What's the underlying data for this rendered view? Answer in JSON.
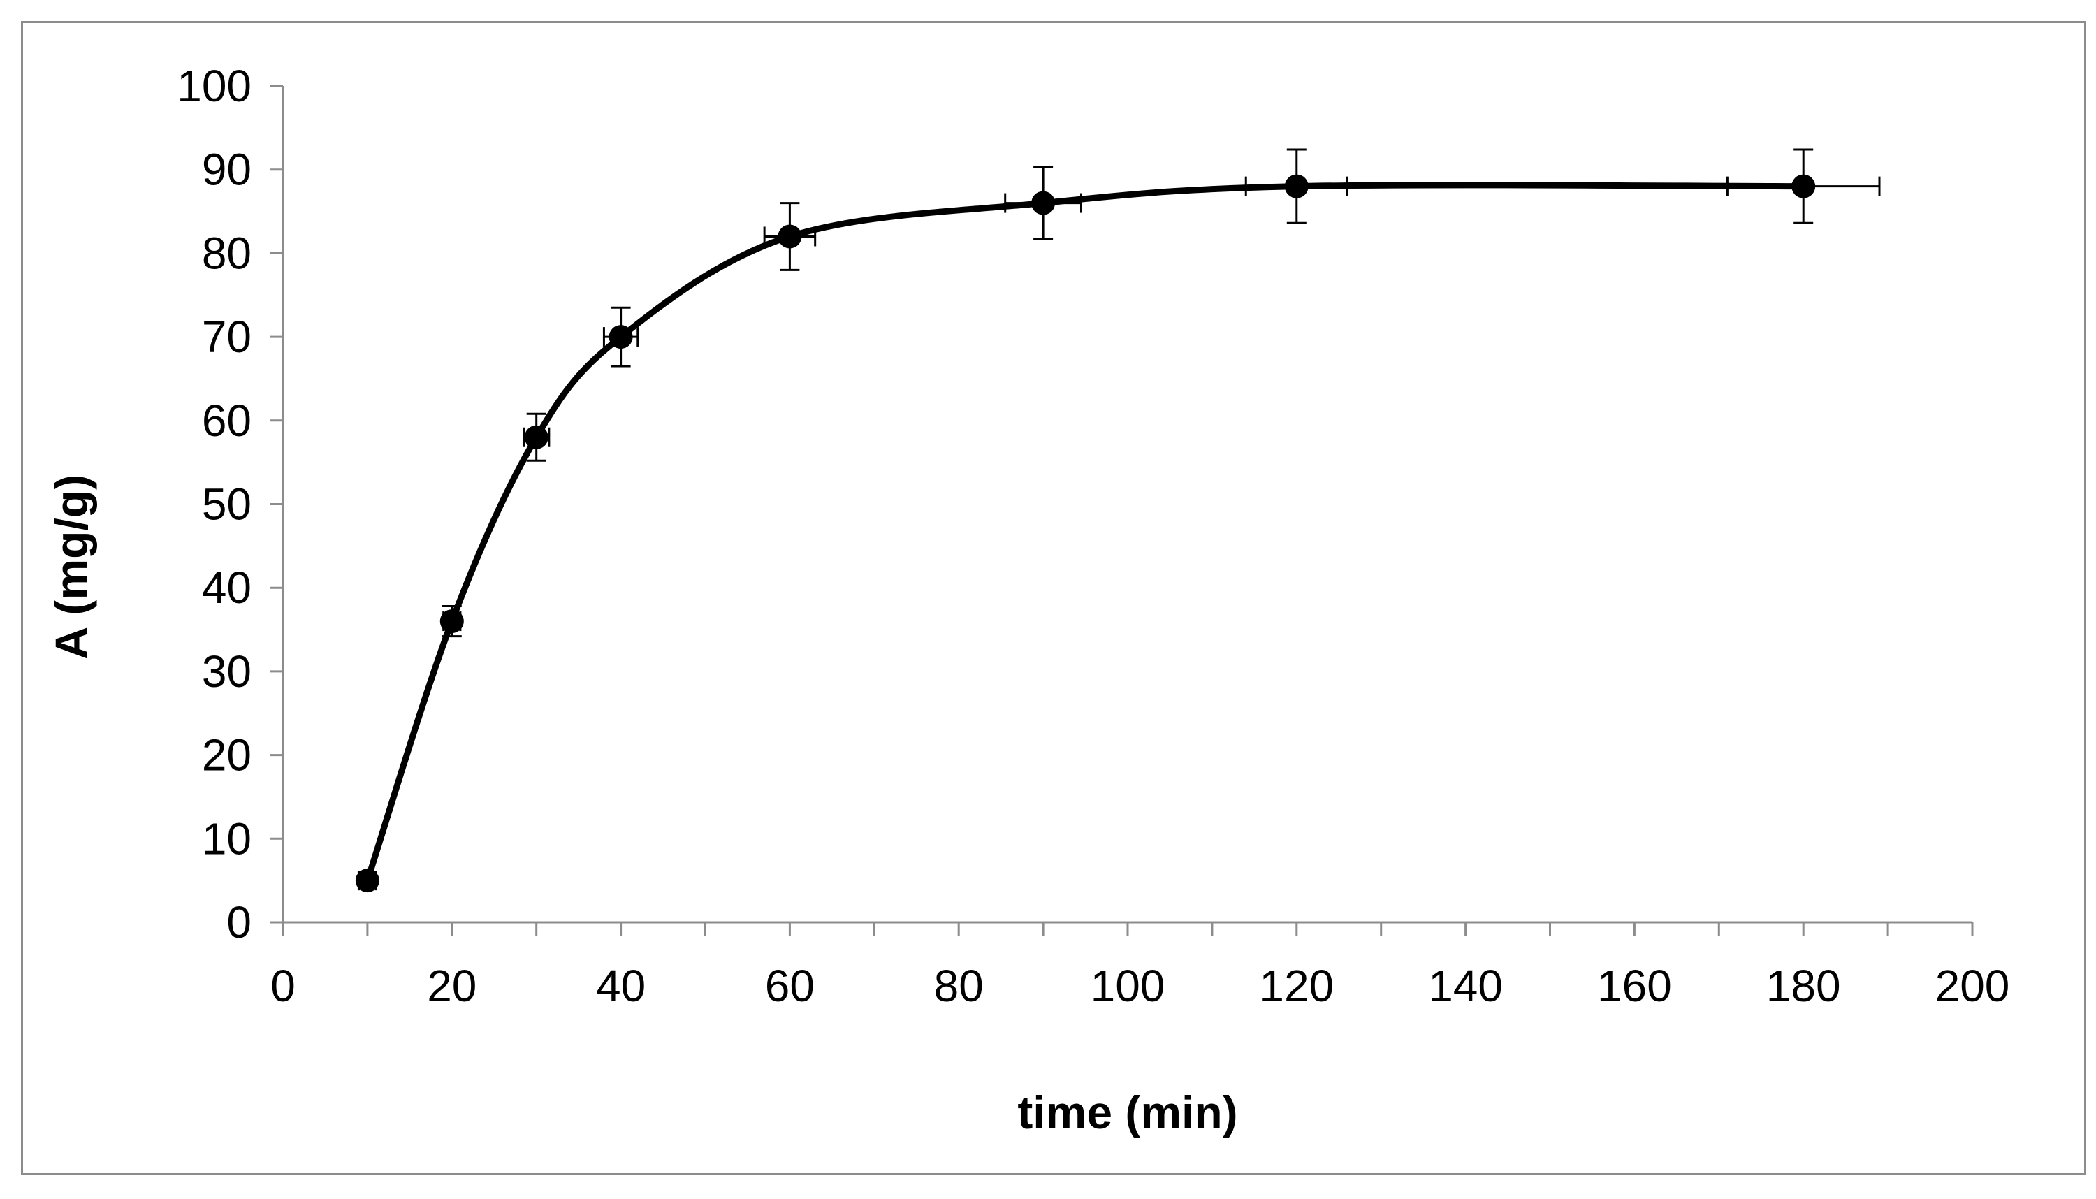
{
  "chart_data": {
    "type": "scatter",
    "title": "",
    "xlabel": "time (min)",
    "ylabel": "A (mg/g)",
    "xlim": [
      0,
      200
    ],
    "ylim": [
      0,
      100
    ],
    "xticks": [
      0,
      20,
      40,
      60,
      80,
      100,
      120,
      140,
      160,
      180,
      200
    ],
    "yticks": [
      0,
      10,
      20,
      30,
      40,
      50,
      60,
      70,
      80,
      90,
      100
    ],
    "grid": false,
    "legend": "none",
    "series": [
      {
        "name": "A",
        "smooth_line": true,
        "color": "#000000",
        "points": [
          {
            "x": 10,
            "y": 5,
            "xerr": 1,
            "yerr": 1
          },
          {
            "x": 20,
            "y": 36,
            "xerr": 1,
            "yerr": 1.8
          },
          {
            "x": 30,
            "y": 58,
            "xerr": 1.5,
            "yerr": 2.8
          },
          {
            "x": 40,
            "y": 70,
            "xerr": 2,
            "yerr": 3.5
          },
          {
            "x": 60,
            "y": 82,
            "xerr": 3,
            "yerr": 4
          },
          {
            "x": 90,
            "y": 86,
            "xerr": 4.5,
            "yerr": 4.3
          },
          {
            "x": 120,
            "y": 88,
            "xerr": 6,
            "yerr": 4.4
          },
          {
            "x": 180,
            "y": 88,
            "xerr": 9,
            "yerr": 4.4
          }
        ]
      }
    ]
  }
}
